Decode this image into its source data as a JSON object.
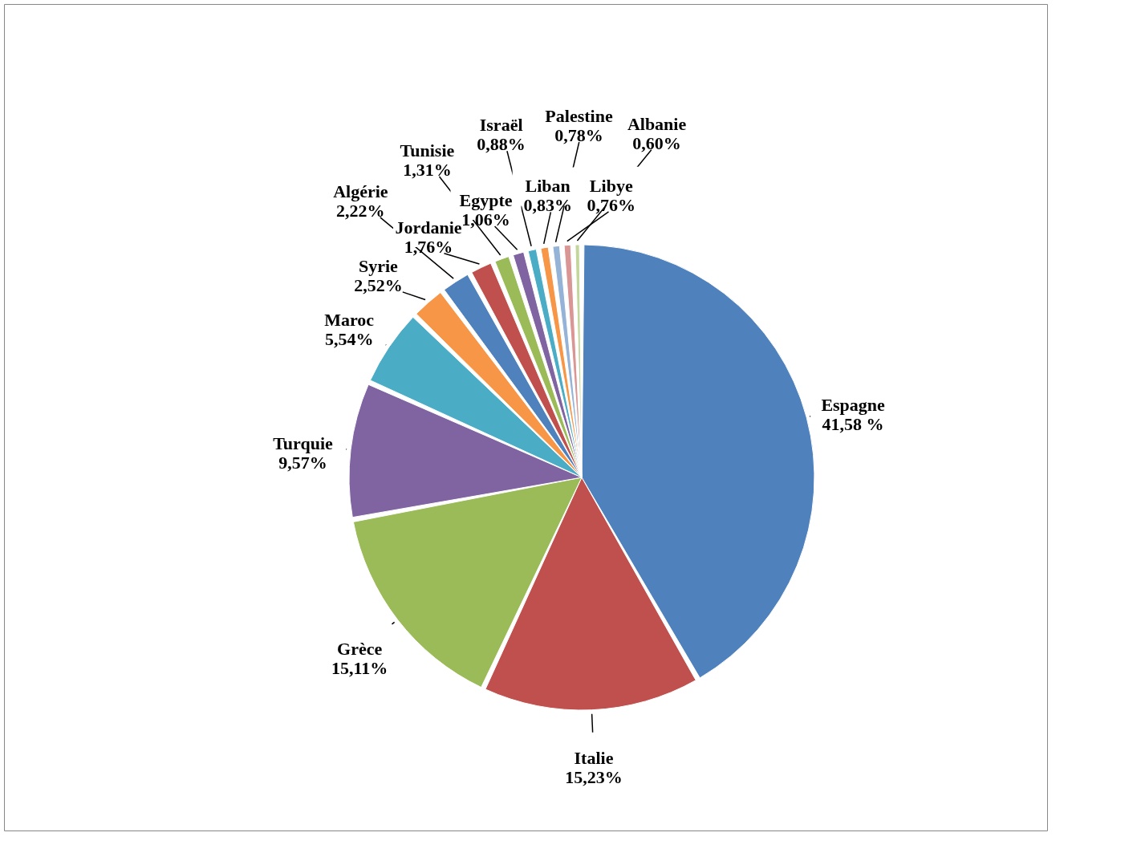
{
  "chart_data": {
    "type": "pie",
    "categories": [
      "Espagne",
      "Italie",
      "Grèce",
      "Turquie",
      "Maroc",
      "Syrie",
      "Algérie",
      "Jordanie",
      "Tunisie",
      "Egypte",
      "Israël",
      "Liban",
      "Palestine",
      "Libye",
      "Albanie"
    ],
    "values": [
      41.58,
      15.23,
      15.11,
      9.57,
      5.54,
      2.52,
      2.22,
      1.76,
      1.31,
      1.06,
      0.88,
      0.83,
      0.78,
      0.76,
      0.6
    ],
    "value_labels": [
      "41,58 %",
      "15,23%",
      "15,11%",
      "9,57%",
      "5,54%",
      "2,52%",
      "2,22%",
      "1,76%",
      "1,31%",
      "1,06%",
      "0,88%",
      "0,83%",
      "0,78%",
      "0,76%",
      "0,60%"
    ],
    "colors": [
      "#4f81bd",
      "#c0504d",
      "#9bbb59",
      "#8064a2",
      "#4bacc6",
      "#f79646",
      "#4f81bd",
      "#c0504d",
      "#9bbb59",
      "#8064a2",
      "#4bacc6",
      "#f79646",
      "#95b3d7",
      "#d99694",
      "#c3d69b"
    ]
  }
}
